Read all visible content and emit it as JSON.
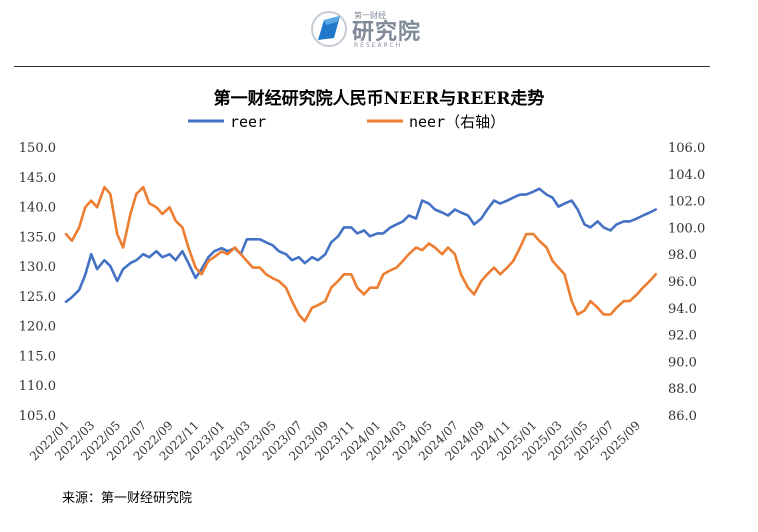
{
  "logo": {
    "name_cn": "研究院",
    "name_small": "第一财经",
    "name_en": "RESEARCH"
  },
  "source": "来源：第一财经研究院",
  "chart_data": {
    "type": "line",
    "title": "第一财经研究院人民币NEER与REER走势",
    "legend_position": "top-center",
    "x_tick_labels": [
      "2022/01",
      "2022/03",
      "2022/05",
      "2022/07",
      "2022/09",
      "2022/11",
      "2023/01",
      "2023/03",
      "2023/05",
      "2023/07",
      "2023/09",
      "2023/11",
      "2024/01",
      "2024/03",
      "2024/05",
      "2024/07",
      "2024/09",
      "2024/11",
      "2025/01",
      "2025/03",
      "2025/05",
      "2025/07",
      "2025/09"
    ],
    "y_left": {
      "ticks": [
        "105.0",
        "110.0",
        "115.0",
        "120.0",
        "125.0",
        "130.0",
        "135.0",
        "140.0",
        "145.0",
        "150.0"
      ],
      "ylim": [
        105,
        150
      ]
    },
    "y_right": {
      "ticks": [
        "86.0",
        "88.0",
        "90.0",
        "92.0",
        "94.0",
        "96.0",
        "98.0",
        "100.0",
        "102.0",
        "104.0",
        "106.0"
      ],
      "ylim": [
        86,
        106
      ]
    },
    "grid": false,
    "series": [
      {
        "name": "reer",
        "axis": "left",
        "color": "#4472c4",
        "x": [
          "2022/01/01",
          "2022/01/15",
          "2022/02/01",
          "2022/02/15",
          "2022/03/01",
          "2022/03/15",
          "2022/04/01",
          "2022/04/15",
          "2022/05/01",
          "2022/05/15",
          "2022/06/01",
          "2022/06/15",
          "2022/07/01",
          "2022/07/15",
          "2022/08/01",
          "2022/08/15",
          "2022/09/01",
          "2022/09/15",
          "2022/10/01",
          "2022/10/15",
          "2022/11/01",
          "2022/11/15",
          "2022/12/01",
          "2022/12/15",
          "2023/01/01",
          "2023/01/15",
          "2023/02/01",
          "2023/02/15",
          "2023/03/01",
          "2023/03/15",
          "2023/04/01",
          "2023/04/15",
          "2023/05/01",
          "2023/05/15",
          "2023/06/01",
          "2023/06/15",
          "2023/07/01",
          "2023/07/15",
          "2023/08/01",
          "2023/08/15",
          "2023/09/01",
          "2023/09/15",
          "2023/10/01",
          "2023/10/15",
          "2023/11/01",
          "2023/11/15",
          "2023/12/01",
          "2023/12/15",
          "2024/01/01",
          "2024/01/15",
          "2024/02/01",
          "2024/02/15",
          "2024/03/01",
          "2024/03/15",
          "2024/04/01",
          "2024/04/15",
          "2024/05/01",
          "2024/05/15",
          "2024/06/01",
          "2024/06/15",
          "2024/07/01",
          "2024/07/15",
          "2024/08/01",
          "2024/08/15",
          "2024/09/01",
          "2024/09/15",
          "2024/10/01",
          "2024/10/15",
          "2024/11/01",
          "2024/11/15",
          "2024/12/01",
          "2024/12/15",
          "2025/01/01",
          "2025/01/15",
          "2025/02/01",
          "2025/02/15",
          "2025/03/01",
          "2025/03/15",
          "2025/04/01",
          "2025/04/15",
          "2025/05/01",
          "2025/05/15",
          "2025/06/01",
          "2025/06/15",
          "2025/07/01",
          "2025/07/15",
          "2025/08/01",
          "2025/08/15",
          "2025/09/01",
          "2025/09/15",
          "2025/10/01",
          "2025/10/15"
        ],
        "values": [
          124.0,
          124.8,
          126.0,
          128.5,
          132.0,
          129.5,
          131.0,
          130.0,
          127.5,
          129.5,
          130.5,
          131.0,
          132.0,
          131.5,
          132.5,
          131.5,
          132.0,
          131.0,
          132.5,
          130.5,
          128.0,
          129.5,
          131.5,
          132.5,
          133.0,
          132.5,
          133.0,
          132.0,
          134.5,
          134.5,
          134.5,
          134.0,
          133.5,
          132.5,
          132.0,
          131.0,
          131.5,
          130.5,
          131.5,
          131.0,
          132.0,
          134.0,
          135.0,
          136.5,
          136.5,
          135.5,
          136.0,
          135.0,
          135.5,
          135.5,
          136.5,
          137.0,
          137.5,
          138.5,
          138.0,
          141.0,
          140.5,
          139.5,
          139.0,
          138.5,
          139.5,
          139.0,
          138.5,
          137.0,
          138.0,
          139.5,
          141.0,
          140.5,
          141.0,
          141.5,
          142.0,
          142.0,
          142.5,
          143.0,
          142.0,
          141.5,
          140.0,
          140.5,
          141.0,
          139.5,
          137.0,
          136.5,
          137.5,
          136.5,
          136.0,
          137.0,
          137.5,
          137.5,
          138.0,
          138.5,
          139.0,
          139.5
        ]
      },
      {
        "name": "neer（右轴）",
        "axis": "right",
        "color": "#ed7d31",
        "x": [
          "2022/01/01",
          "2022/01/15",
          "2022/02/01",
          "2022/02/15",
          "2022/03/01",
          "2022/03/15",
          "2022/04/01",
          "2022/04/15",
          "2022/05/01",
          "2022/05/15",
          "2022/06/01",
          "2022/06/15",
          "2022/07/01",
          "2022/07/15",
          "2022/08/01",
          "2022/08/15",
          "2022/09/01",
          "2022/09/15",
          "2022/10/01",
          "2022/10/15",
          "2022/11/01",
          "2022/11/15",
          "2022/12/01",
          "2022/12/15",
          "2023/01/01",
          "2023/01/15",
          "2023/02/01",
          "2023/02/15",
          "2023/03/01",
          "2023/03/15",
          "2023/04/01",
          "2023/04/15",
          "2023/05/01",
          "2023/05/15",
          "2023/06/01",
          "2023/06/15",
          "2023/07/01",
          "2023/07/15",
          "2023/08/01",
          "2023/08/15",
          "2023/09/01",
          "2023/09/15",
          "2023/10/01",
          "2023/10/15",
          "2023/11/01",
          "2023/11/15",
          "2023/12/01",
          "2023/12/15",
          "2024/01/01",
          "2024/01/15",
          "2024/02/01",
          "2024/02/15",
          "2024/03/01",
          "2024/03/15",
          "2024/04/01",
          "2024/04/15",
          "2024/05/01",
          "2024/05/15",
          "2024/06/01",
          "2024/06/15",
          "2024/07/01",
          "2024/07/15",
          "2024/08/01",
          "2024/08/15",
          "2024/09/01",
          "2024/09/15",
          "2024/10/01",
          "2024/10/15",
          "2024/11/01",
          "2024/11/15",
          "2024/12/01",
          "2024/12/15",
          "2025/01/01",
          "2025/01/15",
          "2025/02/01",
          "2025/02/15",
          "2025/03/01",
          "2025/03/15",
          "2025/04/01",
          "2025/04/15",
          "2025/05/01",
          "2025/05/15",
          "2025/06/01",
          "2025/06/15",
          "2025/07/01",
          "2025/07/15",
          "2025/08/01",
          "2025/08/15",
          "2025/09/01",
          "2025/09/15",
          "2025/10/01",
          "2025/10/15"
        ],
        "values": [
          99.5,
          99.0,
          100.0,
          101.5,
          102.0,
          101.5,
          103.0,
          102.5,
          99.5,
          98.5,
          101.0,
          102.5,
          103.0,
          101.8,
          101.5,
          101.0,
          101.5,
          100.5,
          100.0,
          98.5,
          97.0,
          96.5,
          97.5,
          97.8,
          98.2,
          98.0,
          98.5,
          98.0,
          97.5,
          97.0,
          97.0,
          96.5,
          96.2,
          96.0,
          95.5,
          94.5,
          93.5,
          93.0,
          94.0,
          94.2,
          94.5,
          95.5,
          96.0,
          96.5,
          96.5,
          95.5,
          95.0,
          95.5,
          95.5,
          96.5,
          96.8,
          97.0,
          97.5,
          98.0,
          98.5,
          98.3,
          98.8,
          98.5,
          98.0,
          98.5,
          98.0,
          96.5,
          95.5,
          95.0,
          96.0,
          96.5,
          97.0,
          96.5,
          97.0,
          97.5,
          98.5,
          99.5,
          99.5,
          99.0,
          98.5,
          97.5,
          97.0,
          96.5,
          94.5,
          93.5,
          93.8,
          94.5,
          94.0,
          93.5,
          93.5,
          94.0,
          94.5,
          94.5,
          95.0,
          95.5,
          96.0,
          96.5
        ]
      }
    ]
  }
}
